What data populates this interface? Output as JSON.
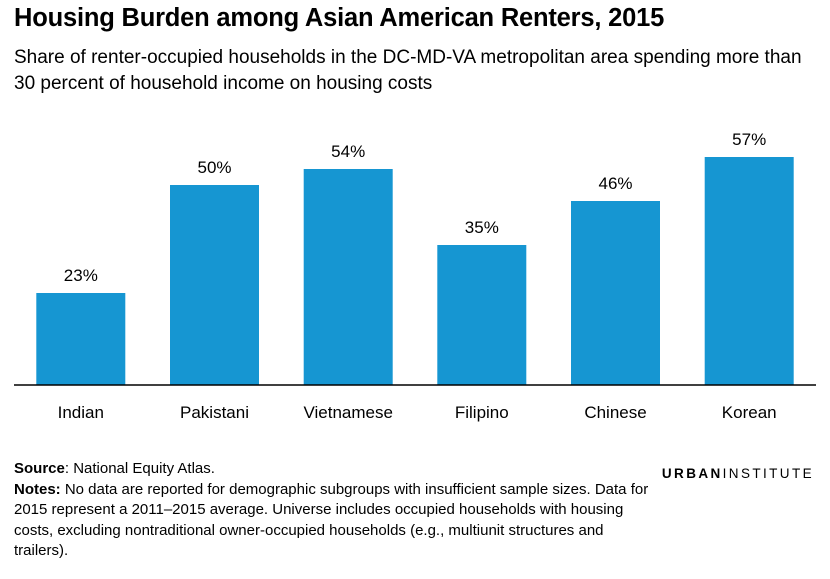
{
  "title": "Housing Burden among Asian American Renters, 2015",
  "subtitle": "Share of renter-occupied households in the DC-MD-VA metropolitan area spending more than 30 percent of household income on housing costs",
  "chart_data": {
    "type": "bar",
    "categories": [
      "Indian",
      "Pakistani",
      "Vietnamese",
      "Filipino",
      "Chinese",
      "Korean"
    ],
    "values": [
      23,
      50,
      54,
      35,
      46,
      57
    ],
    "labels": [
      "23%",
      "50%",
      "54%",
      "35%",
      "46%",
      "57%"
    ],
    "ylim": [
      0,
      60
    ],
    "grid": false,
    "bar_color": "#1696d2",
    "axis_color": "#000000"
  },
  "footer": {
    "source_label": "Source",
    "source_text": ": National Equity Atlas.",
    "notes_label": "Notes:",
    "notes_text": " No data are reported for demographic subgroups with insufficient sample sizes. Data for 2015 represent a 2011–2015 average. Universe includes occupied households with housing costs, excluding nontraditional owner-occupied households (e.g., multiunit structures and trailers)."
  },
  "brand": {
    "part1": "URBAN",
    "part2": "INSTITUTE"
  }
}
